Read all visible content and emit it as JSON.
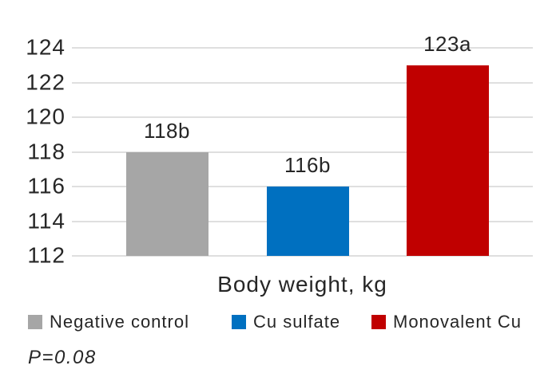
{
  "chart_data": {
    "type": "bar",
    "categories": [
      "Negative control",
      "Cu sulfate",
      "Monovalent Cu"
    ],
    "values": [
      118,
      116,
      123
    ],
    "bar_labels": [
      "118b",
      "116b",
      "123a"
    ],
    "bar_colors": [
      "#A6A6A6",
      "#0070C0",
      "#C00000"
    ],
    "title": "",
    "xlabel": "Body weight, kg",
    "ylabel": "",
    "ylim": [
      112,
      124
    ],
    "yticks": [
      112,
      114,
      116,
      118,
      120,
      122,
      124
    ],
    "grid": true,
    "legend_position": "bottom",
    "annotation": "P=0.08"
  },
  "legend": {
    "items": [
      {
        "label": "Negative control",
        "color": "#A6A6A6"
      },
      {
        "label": "Cu sulfate",
        "color": "#0070C0"
      },
      {
        "label": "Monovalent Cu",
        "color": "#C00000"
      }
    ]
  },
  "colors": {
    "grid": "#DFDFDF",
    "text": "#262626",
    "background": "#FFFFFF"
  }
}
